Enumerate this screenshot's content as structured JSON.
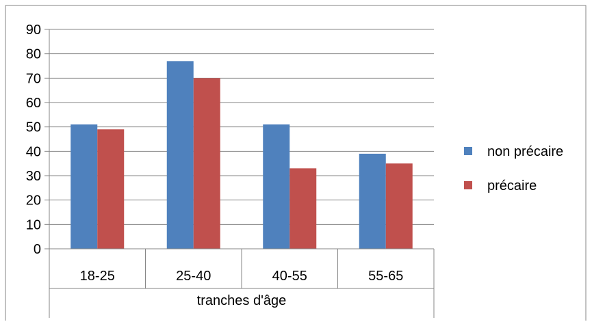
{
  "chart_data": {
    "type": "bar",
    "categories": [
      "18-25",
      "25-40",
      "40-55",
      "55-65"
    ],
    "series": [
      {
        "name": "non précaire",
        "values": [
          51,
          77,
          51,
          39
        ],
        "color": "#4f81bd"
      },
      {
        "name": "précaire",
        "values": [
          49,
          70,
          33,
          35
        ],
        "color": "#c0504d"
      }
    ],
    "ylim": [
      0,
      90
    ],
    "yticks": [
      0,
      10,
      20,
      30,
      40,
      50,
      60,
      70,
      80,
      90
    ],
    "xlabel": "tranches d'âge",
    "title": "",
    "ylabel": "",
    "grid": true,
    "legend": "right"
  }
}
